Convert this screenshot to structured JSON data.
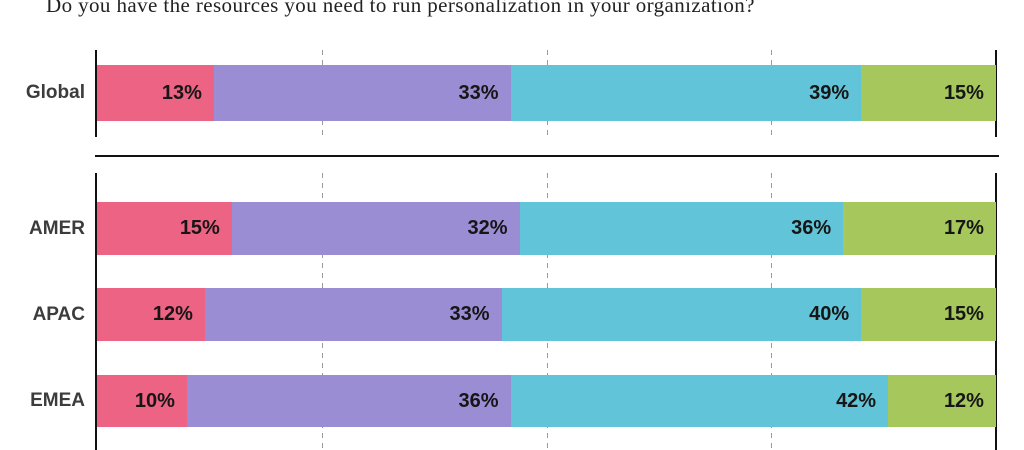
{
  "title": "Do you have the resources you need to run personalization in your organization?",
  "colors": {
    "segment_1": "#EC6383",
    "segment_2": "#9A8DD3",
    "segment_3": "#62C4D9",
    "segment_4": "#A5C75B",
    "axis": "#111111",
    "gridline": "#9A9A9A",
    "value_label": "#161616",
    "category_label": "#3C3C3C"
  },
  "chart_data": {
    "type": "bar",
    "orientation": "horizontal",
    "stacked": true,
    "title": "Do you have the resources you need to run personalization in your organization?",
    "unit": "%",
    "xlim": [
      0,
      100
    ],
    "gridlines_percent": [
      25,
      50,
      75
    ],
    "legend": "none",
    "categories": [
      "Global",
      "AMER",
      "APAC",
      "EMEA"
    ],
    "groups": [
      [
        "Global"
      ],
      [
        "AMER",
        "APAC",
        "EMEA"
      ]
    ],
    "series": [
      {
        "name": "series_1",
        "color": "#EC6383",
        "values": [
          13,
          15,
          12,
          10
        ]
      },
      {
        "name": "series_2",
        "color": "#9A8DD3",
        "values": [
          33,
          32,
          33,
          36
        ]
      },
      {
        "name": "series_3",
        "color": "#62C4D9",
        "values": [
          39,
          36,
          40,
          42
        ]
      },
      {
        "name": "series_4",
        "color": "#A5C75B",
        "values": [
          15,
          17,
          15,
          12
        ]
      }
    ],
    "value_labels": [
      [
        "13%",
        "33%",
        "39%",
        "15%"
      ],
      [
        "15%",
        "32%",
        "36%",
        "17%"
      ],
      [
        "12%",
        "33%",
        "40%",
        "15%"
      ],
      [
        "10%",
        "36%",
        "42%",
        "12%"
      ]
    ]
  }
}
